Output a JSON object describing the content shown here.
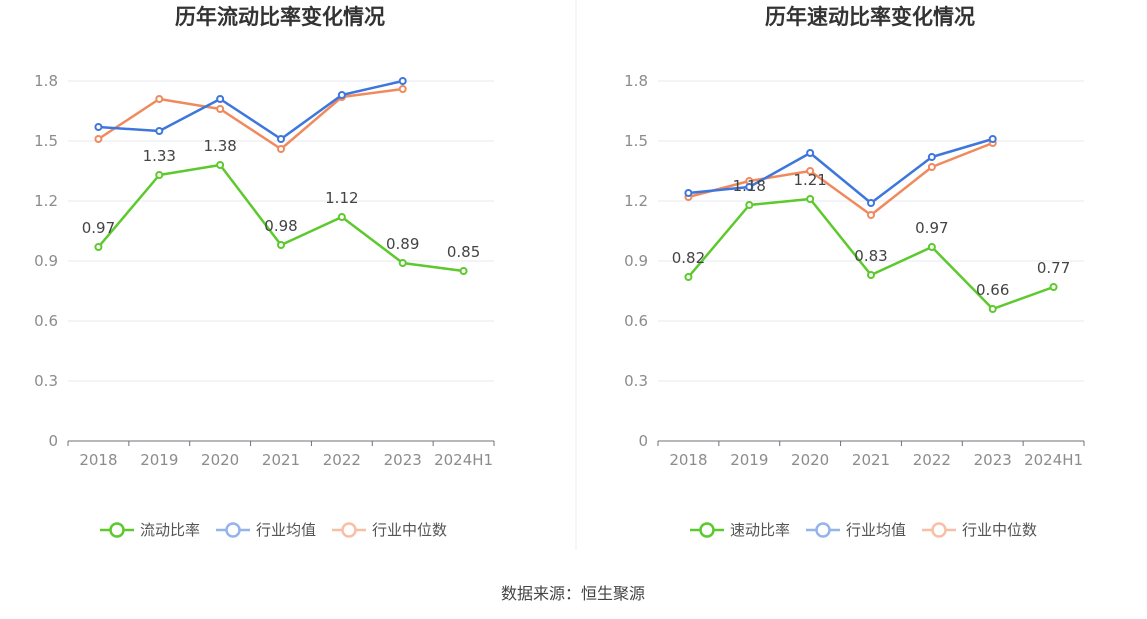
{
  "chart_data": [
    {
      "type": "line",
      "title": "历年流动比率变化情况",
      "categories": [
        "2018",
        "2019",
        "2020",
        "2021",
        "2022",
        "2023",
        "2024H1"
      ],
      "ylim": [
        0,
        1.8
      ],
      "yticks": [
        "0",
        "0.3",
        "0.6",
        "0.9",
        "1.2",
        "1.5",
        "1.8"
      ],
      "grid": true,
      "legend_position": "bottom",
      "series": [
        {
          "name": "流动比率",
          "color": "#5cc92d",
          "values": [
            0.97,
            1.33,
            1.38,
            0.98,
            1.12,
            0.89,
            0.85
          ],
          "labels": [
            "0.97",
            "1.33",
            "1.38",
            "0.98",
            "1.12",
            "0.89",
            "0.85"
          ]
        },
        {
          "name": "行业均值",
          "color": "#3d76dd",
          "values": [
            1.57,
            1.55,
            1.71,
            1.51,
            1.73,
            1.8,
            null
          ]
        },
        {
          "name": "行业中位数",
          "color": "#f08a5d",
          "values": [
            1.51,
            1.71,
            1.66,
            1.46,
            1.72,
            1.76,
            null
          ]
        }
      ]
    },
    {
      "type": "line",
      "title": "历年速动比率变化情况",
      "categories": [
        "2018",
        "2019",
        "2020",
        "2021",
        "2022",
        "2023",
        "2024H1"
      ],
      "ylim": [
        0,
        1.8
      ],
      "yticks": [
        "0",
        "0.3",
        "0.6",
        "0.9",
        "1.2",
        "1.5",
        "1.8"
      ],
      "grid": true,
      "legend_position": "bottom",
      "series": [
        {
          "name": "速动比率",
          "color": "#5cc92d",
          "values": [
            0.82,
            1.18,
            1.21,
            0.83,
            0.97,
            0.66,
            0.77
          ],
          "labels": [
            "0.82",
            "1.18",
            "1.21",
            "0.83",
            "0.97",
            "0.66",
            "0.77"
          ]
        },
        {
          "name": "行业均值",
          "color": "#3d76dd",
          "values": [
            1.24,
            1.27,
            1.44,
            1.19,
            1.42,
            1.51,
            null
          ]
        },
        {
          "name": "行业中位数",
          "color": "#f08a5d",
          "values": [
            1.22,
            1.3,
            1.35,
            1.13,
            1.37,
            1.49,
            null
          ]
        }
      ]
    }
  ],
  "footer": {
    "source": "数据来源：恒生聚源"
  }
}
